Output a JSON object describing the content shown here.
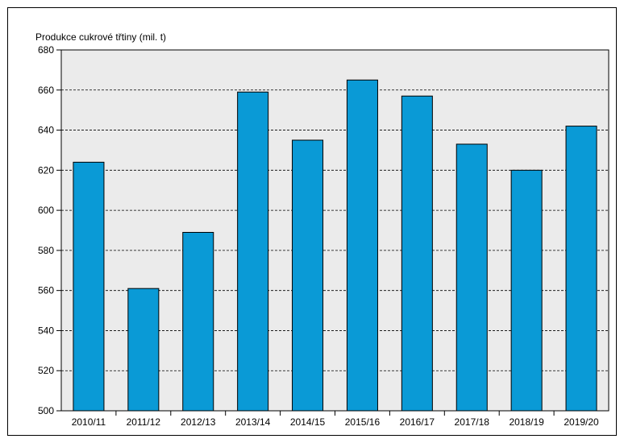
{
  "chart_data": {
    "type": "bar",
    "ylabel": "Produkce cukrové třtiny (mil. t)",
    "xlabel": "",
    "categories": [
      "2010/11",
      "2011/12",
      "2012/13",
      "2013/14",
      "2014/15",
      "2015/16",
      "2016/17",
      "2017/18",
      "2018/19",
      "2019/20"
    ],
    "values": [
      624,
      561,
      589,
      659,
      635,
      665,
      657,
      633,
      620,
      642
    ],
    "ylim": [
      500,
      680
    ],
    "yticks": [
      500,
      520,
      540,
      560,
      580,
      600,
      620,
      640,
      660,
      680
    ],
    "grid": true,
    "legend": "none",
    "colors": {
      "bar": "#0a9ad6",
      "plot_background": "#ebebeb",
      "grid": "#000000"
    }
  }
}
